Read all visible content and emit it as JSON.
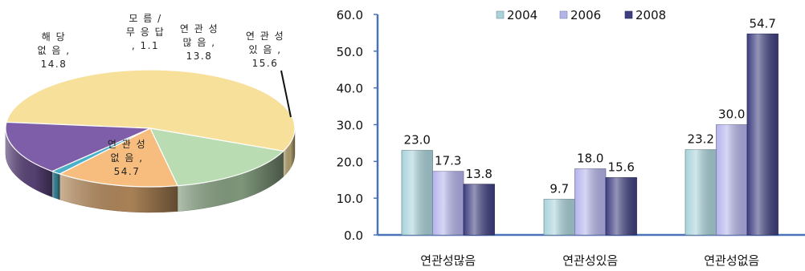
{
  "chart_data": [
    {
      "type": "pie",
      "title": "",
      "slices": [
        {
          "label": "연관성없음",
          "value": 54.7,
          "text": [
            "연 관 성",
            "없 음 ,",
            "54.7"
          ],
          "color": "#F7E09A"
        },
        {
          "label": "연관성있음",
          "value": 15.6,
          "text": [
            "연 관 성",
            "있 음 ,",
            "15.6"
          ],
          "color": "#B9DCB2"
        },
        {
          "label": "연관성많음",
          "value": 13.8,
          "text": [
            "연 관 성",
            "많 음 ,",
            "13.8"
          ],
          "color": "#F7BD7E"
        },
        {
          "label": "모름/무응답",
          "value": 1.1,
          "text": [
            "모 름 /",
            "무 응 답",
            ", 1.1"
          ],
          "color": "#4BB0C8"
        },
        {
          "label": "해당없음",
          "value": 14.8,
          "text": [
            "해 당",
            "없 음 ,",
            "14.8"
          ],
          "color": "#7E5EA8"
        }
      ]
    },
    {
      "type": "bar",
      "title": "",
      "categories": [
        "연관성많음",
        "연관성있음",
        "연관성없음"
      ],
      "series": [
        {
          "name": "2004",
          "values": [
            23.0,
            9.7,
            23.2
          ],
          "color": "#A9D3DB"
        },
        {
          "name": "2006",
          "values": [
            17.3,
            18.0,
            30.0
          ],
          "color": "#B4B4EC"
        },
        {
          "name": "2008",
          "values": [
            13.8,
            15.6,
            54.7
          ],
          "color": "#3E3E80"
        }
      ],
      "ylim": [
        0,
        60
      ],
      "yticks": [
        "0.0",
        "10.0",
        "20.0",
        "30.0",
        "40.0",
        "50.0",
        "60.0"
      ],
      "legend": "top",
      "grid": false
    }
  ]
}
